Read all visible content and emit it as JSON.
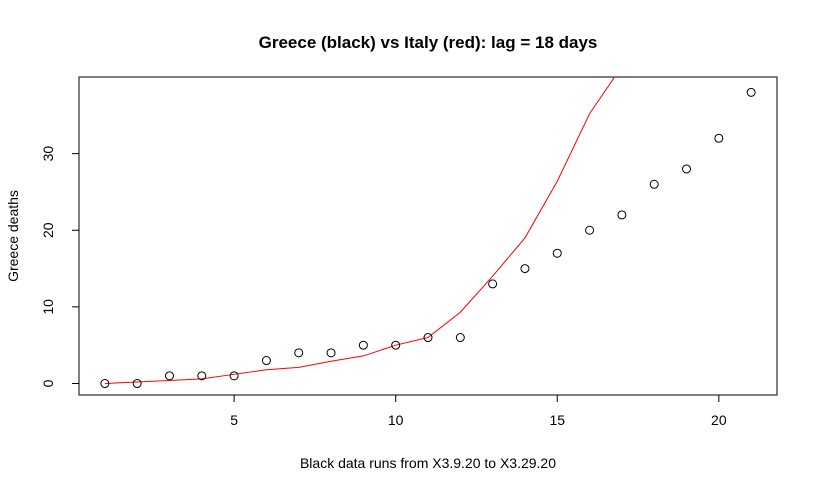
{
  "chart_data": {
    "type": "scatter",
    "title": "Greece (black) vs Italy (red): lag = 18 days",
    "xlabel": "Black data runs from X3.9.20 to X3.29.20",
    "ylabel": "Greece deaths",
    "xlim": [
      0.2,
      21.8
    ],
    "ylim": [
      -1.5,
      40
    ],
    "xticks": [
      5,
      10,
      15,
      20
    ],
    "yticks": [
      0,
      10,
      20,
      30
    ],
    "grid": false,
    "colors": {
      "points": "#000000",
      "line": "#ff0000",
      "box": "#000000"
    },
    "series": [
      {
        "type": "scatter",
        "x": [
          1,
          2,
          3,
          4,
          5,
          6,
          7,
          8,
          9,
          10,
          11,
          12,
          13,
          14,
          15,
          16,
          17,
          18,
          19,
          20,
          21
        ],
        "y": [
          0,
          0,
          1,
          1,
          1,
          3,
          4,
          4,
          5,
          5,
          6,
          6,
          13,
          15,
          17,
          20,
          22,
          26,
          28,
          32,
          38
        ]
      },
      {
        "type": "line",
        "x": [
          1,
          2,
          3,
          4,
          5,
          6,
          7,
          8,
          9,
          10,
          11,
          12,
          13,
          14,
          15,
          16,
          17
        ],
        "y": [
          0,
          0.2,
          0.4,
          0.6,
          1.2,
          1.8,
          2.1,
          2.9,
          3.6,
          5.0,
          6.0,
          9.3,
          14.0,
          19.0,
          26.4,
          35.2,
          41.4
        ]
      }
    ]
  }
}
